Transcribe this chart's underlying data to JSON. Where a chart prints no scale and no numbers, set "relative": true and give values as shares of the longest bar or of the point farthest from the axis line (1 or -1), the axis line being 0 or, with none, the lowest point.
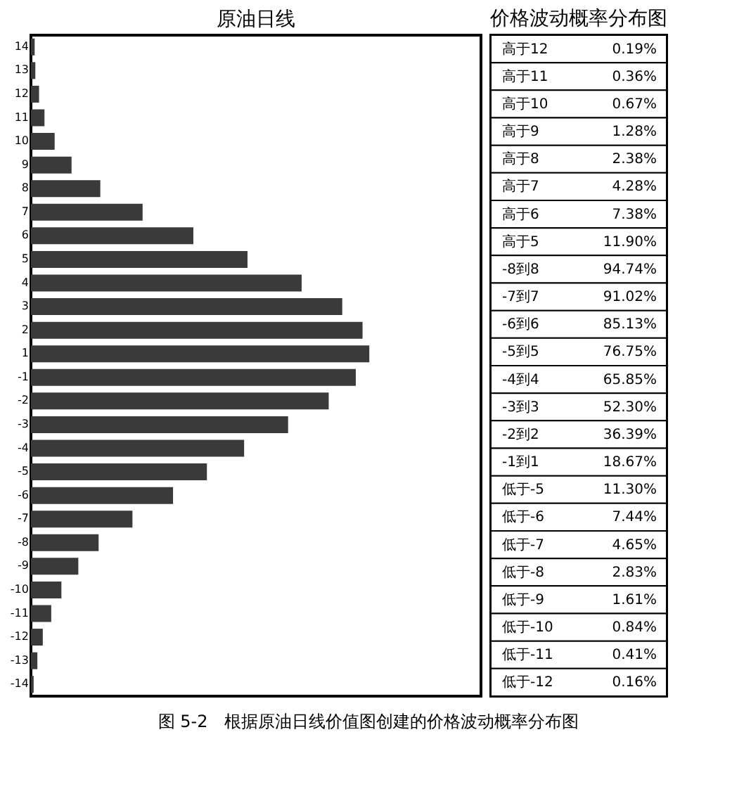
{
  "chart_data": {
    "type": "bar",
    "orientation": "horizontal",
    "relative": true,
    "title": "原油日线",
    "subtitle": "价格波动概率分布图",
    "color": "#3a3a3a",
    "grid": false,
    "tick_labels": "y",
    "categories": [
      "14",
      "13",
      "12",
      "11",
      "10",
      "9",
      "8",
      "7",
      "6",
      "5",
      "4",
      "3",
      "2",
      "1",
      "-1",
      "-2",
      "-3",
      "-4",
      "-5",
      "-6",
      "-7",
      "-8",
      "-9",
      "-10",
      "-11",
      "-12",
      "-13",
      "-14"
    ],
    "values": [
      0.011,
      0.013,
      0.024,
      0.04,
      0.07,
      0.12,
      0.205,
      0.33,
      0.48,
      0.64,
      0.8,
      0.92,
      0.98,
      1,
      0.96,
      0.88,
      0.76,
      0.63,
      0.52,
      0.42,
      0.3,
      0.2,
      0.14,
      0.09,
      0.06,
      0.035,
      0.019,
      0.008
    ],
    "annotations": [
      "高于12 0.19%",
      "高于11 0.36%",
      "高于10 0.67%",
      "高于9 1.28%",
      "高于8 2.38%",
      "高于7 4.28%",
      "高于6 7.38%",
      "高于5 11.90%",
      "-8到8 94.74%",
      "-7到7 91.02%",
      "-6到6 85.13%",
      "-5到5 76.75%",
      "-4到4 65.85%",
      "-3到3 52.30%",
      "-2到2 36.39%",
      "-1到1 18.67%",
      "低于-5 11.30%",
      "低于-6 7.44%",
      "低于-7 4.65%",
      "低于-8 2.83%",
      "低于-9 1.61%",
      "低于-10 0.84%",
      "低于-11 0.41%",
      "低于-12 0.16%",
      "图 5-2　根据原油日线价值图创建的价格波动概率分布图"
    ]
  }
}
